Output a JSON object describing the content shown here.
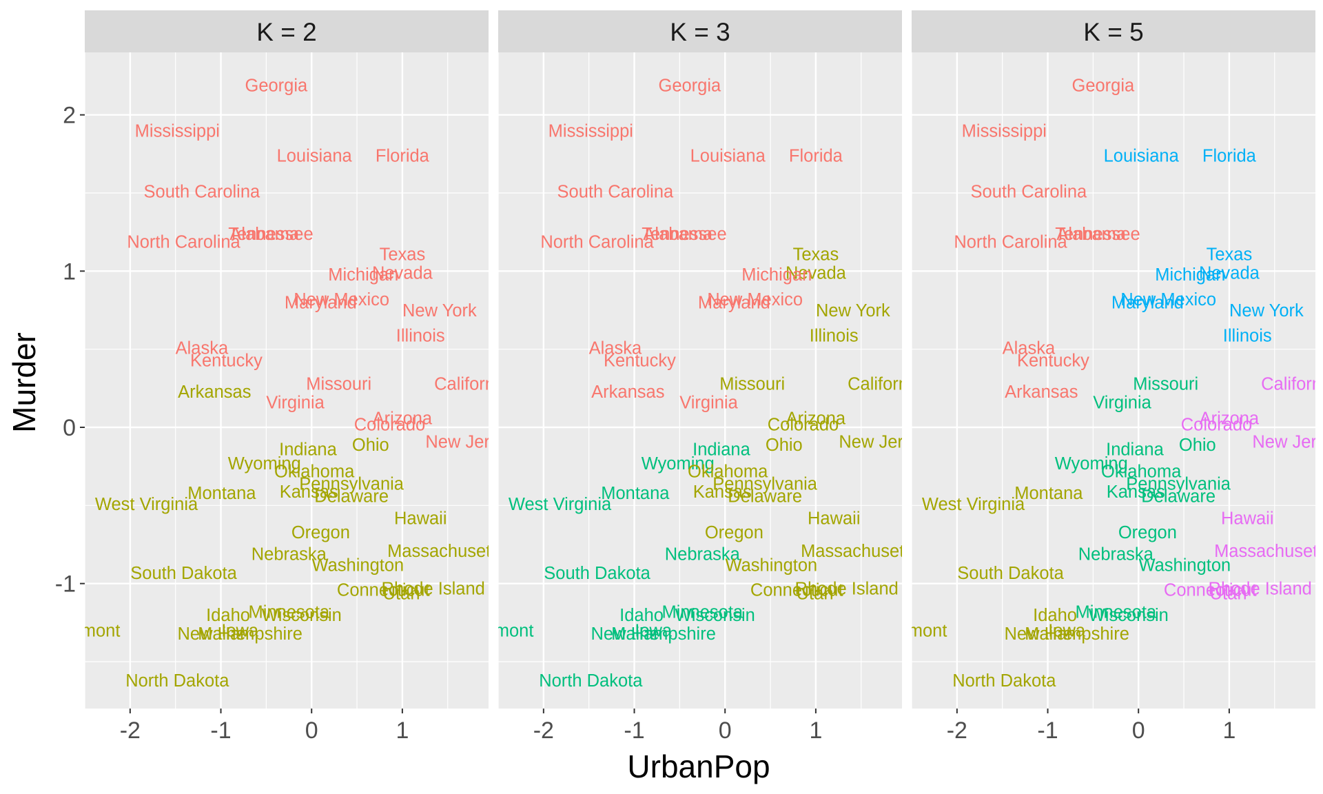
{
  "chart_data": {
    "type": "scatter",
    "xlabel": "UrbanPop",
    "ylabel": "Murder",
    "xlim": [
      -2.5,
      1.95
    ],
    "ylim": [
      -1.8,
      2.4
    ],
    "xticks": [
      -2,
      -1,
      0,
      1
    ],
    "yticks": [
      -1,
      0,
      1,
      2
    ],
    "tick_labels": {
      "x": [
        "-2",
        "-1",
        "0",
        "1"
      ],
      "y": [
        "-1",
        "0",
        "1",
        "2"
      ]
    },
    "cluster_colors": [
      "#F8766D",
      "#A3A500",
      "#00BF7D",
      "#00B0F6",
      "#E76BF3"
    ],
    "panels": [
      {
        "title": "K = 2",
        "k": 2
      },
      {
        "title": "K = 3",
        "k": 3
      },
      {
        "title": "K = 5",
        "k": 5
      }
    ],
    "points": [
      {
        "state": "Georgia",
        "x": -0.39,
        "y": 2.19,
        "c": [
          0,
          0,
          0
        ]
      },
      {
        "state": "Mississippi",
        "x": -1.48,
        "y": 1.9,
        "c": [
          0,
          0,
          0
        ]
      },
      {
        "state": "Louisiana",
        "x": 0.03,
        "y": 1.74,
        "c": [
          0,
          0,
          3
        ]
      },
      {
        "state": "Florida",
        "x": 1.0,
        "y": 1.74,
        "c": [
          0,
          0,
          3
        ]
      },
      {
        "state": "South Carolina",
        "x": -1.21,
        "y": 1.51,
        "c": [
          0,
          0,
          0
        ]
      },
      {
        "state": "Alabama",
        "x": -0.52,
        "y": 1.24,
        "c": [
          0,
          0,
          0
        ]
      },
      {
        "state": "Tennessee",
        "x": -0.45,
        "y": 1.24,
        "c": [
          0,
          0,
          0
        ]
      },
      {
        "state": "North Carolina",
        "x": -1.41,
        "y": 1.19,
        "c": [
          0,
          0,
          0
        ]
      },
      {
        "state": "Texas",
        "x": 1.0,
        "y": 1.11,
        "c": [
          0,
          1,
          3
        ]
      },
      {
        "state": "Nevada",
        "x": 1.0,
        "y": 0.99,
        "c": [
          0,
          1,
          3
        ]
      },
      {
        "state": "Michigan",
        "x": 0.57,
        "y": 0.98,
        "c": [
          0,
          0,
          3
        ]
      },
      {
        "state": "New Mexico",
        "x": 0.33,
        "y": 0.82,
        "c": [
          0,
          0,
          3
        ]
      },
      {
        "state": "Maryland",
        "x": 0.1,
        "y": 0.8,
        "c": [
          0,
          0,
          3
        ]
      },
      {
        "state": "New York",
        "x": 1.41,
        "y": 0.75,
        "c": [
          0,
          1,
          3
        ]
      },
      {
        "state": "Illinois",
        "x": 1.2,
        "y": 0.59,
        "c": [
          0,
          1,
          3
        ]
      },
      {
        "state": "Alaska",
        "x": -1.21,
        "y": 0.51,
        "c": [
          0,
          0,
          0
        ]
      },
      {
        "state": "Kentucky",
        "x": -0.94,
        "y": 0.43,
        "c": [
          0,
          0,
          0
        ]
      },
      {
        "state": "Missouri",
        "x": 0.3,
        "y": 0.28,
        "c": [
          0,
          1,
          2
        ]
      },
      {
        "state": "California",
        "x": 1.76,
        "y": 0.28,
        "c": [
          0,
          1,
          4
        ]
      },
      {
        "state": "Arkansas",
        "x": -1.07,
        "y": 0.23,
        "c": [
          1,
          0,
          0
        ]
      },
      {
        "state": "Virginia",
        "x": -0.18,
        "y": 0.16,
        "c": [
          0,
          0,
          2
        ]
      },
      {
        "state": "Arizona",
        "x": 1.0,
        "y": 0.06,
        "c": [
          0,
          1,
          4
        ]
      },
      {
        "state": "Colorado",
        "x": 0.86,
        "y": 0.02,
        "c": [
          0,
          1,
          4
        ]
      },
      {
        "state": "New Jersey",
        "x": 1.76,
        "y": -0.09,
        "c": [
          0,
          1,
          4
        ]
      },
      {
        "state": "Ohio",
        "x": 0.65,
        "y": -0.11,
        "c": [
          1,
          1,
          2
        ]
      },
      {
        "state": "Indiana",
        "x": -0.04,
        "y": -0.14,
        "c": [
          1,
          2,
          2
        ]
      },
      {
        "state": "Wyoming",
        "x": -0.52,
        "y": -0.23,
        "c": [
          1,
          2,
          2
        ]
      },
      {
        "state": "Oklahoma",
        "x": 0.03,
        "y": -0.28,
        "c": [
          1,
          1,
          2
        ]
      },
      {
        "state": "Pennsylvania",
        "x": 0.44,
        "y": -0.36,
        "c": [
          1,
          1,
          2
        ]
      },
      {
        "state": "Kansas",
        "x": -0.03,
        "y": -0.41,
        "c": [
          1,
          1,
          2
        ]
      },
      {
        "state": "Montana",
        "x": -0.99,
        "y": -0.42,
        "c": [
          1,
          2,
          1
        ]
      },
      {
        "state": "Delaware",
        "x": 0.44,
        "y": -0.44,
        "c": [
          1,
          1,
          2
        ]
      },
      {
        "state": "West Virginia",
        "x": -1.82,
        "y": -0.49,
        "c": [
          1,
          2,
          1
        ]
      },
      {
        "state": "Hawaii",
        "x": 1.2,
        "y": -0.58,
        "c": [
          1,
          1,
          4
        ]
      },
      {
        "state": "Oregon",
        "x": 0.1,
        "y": -0.67,
        "c": [
          1,
          1,
          2
        ]
      },
      {
        "state": "Massachusetts",
        "x": 1.48,
        "y": -0.79,
        "c": [
          1,
          1,
          4
        ]
      },
      {
        "state": "Nebraska",
        "x": -0.25,
        "y": -0.81,
        "c": [
          1,
          2,
          2
        ]
      },
      {
        "state": "Washington",
        "x": 0.51,
        "y": -0.88,
        "c": [
          1,
          1,
          2
        ]
      },
      {
        "state": "South Dakota",
        "x": -1.41,
        "y": -0.93,
        "c": [
          1,
          2,
          1
        ]
      },
      {
        "state": "Rhode Island",
        "x": 1.34,
        "y": -1.03,
        "c": [
          1,
          1,
          4
        ]
      },
      {
        "state": "Connecticut",
        "x": 0.79,
        "y": -1.04,
        "c": [
          1,
          1,
          4
        ]
      },
      {
        "state": "Utah",
        "x": 0.99,
        "y": -1.06,
        "c": [
          1,
          1,
          4
        ]
      },
      {
        "state": "Minnesota",
        "x": -0.25,
        "y": -1.18,
        "c": [
          1,
          2,
          2
        ]
      },
      {
        "state": "Wisconsin",
        "x": -0.11,
        "y": -1.2,
        "c": [
          1,
          2,
          2
        ]
      },
      {
        "state": "Idaho",
        "x": -0.92,
        "y": -1.2,
        "c": [
          1,
          2,
          1
        ]
      },
      {
        "state": "Vermont",
        "x": -2.47,
        "y": -1.3,
        "c": [
          1,
          2,
          1
        ]
      },
      {
        "state": "Iowa",
        "x": -0.79,
        "y": -1.3,
        "c": [
          1,
          2,
          1
        ]
      },
      {
        "state": "Maine",
        "x": -0.99,
        "y": -1.32,
        "c": [
          1,
          2,
          1
        ]
      },
      {
        "state": "New Hampshire",
        "x": -0.79,
        "y": -1.32,
        "c": [
          1,
          2,
          1
        ]
      },
      {
        "state": "North Dakota",
        "x": -1.48,
        "y": -1.62,
        "c": [
          1,
          2,
          1
        ]
      }
    ]
  }
}
